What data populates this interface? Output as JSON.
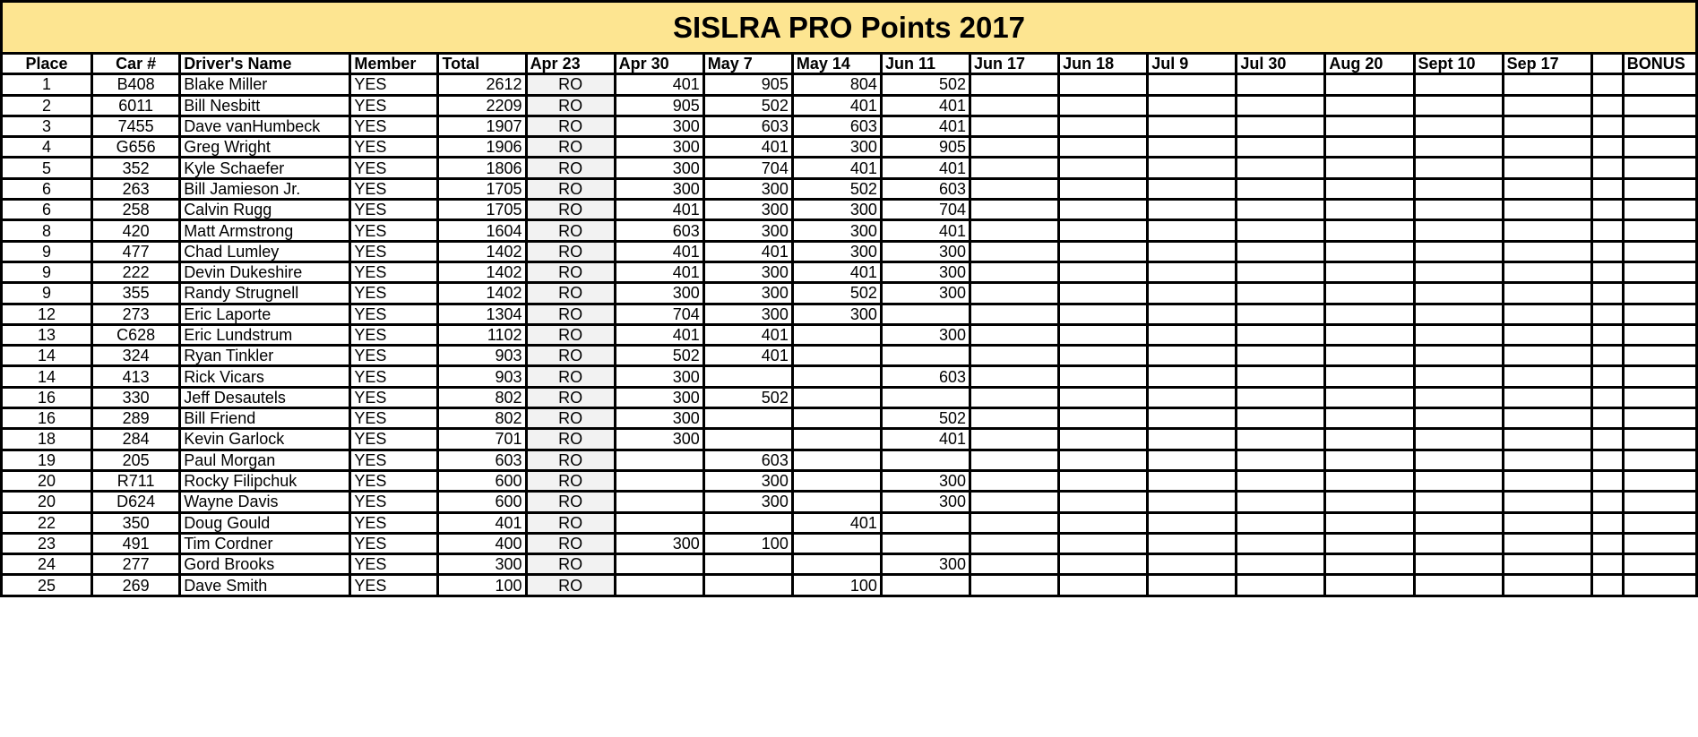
{
  "title": "SISLRA PRO Points 2017",
  "headers": [
    "Place",
    "Car #",
    "Driver's Name",
    "Member",
    "Total",
    "Apr 23",
    "Apr 30",
    "May 7",
    "May 14",
    "Jun 11",
    "Jun 17",
    "Jun 18",
    "Jul 9",
    "Jul 30",
    "Aug 20",
    "Sept 10",
    "Sep 17",
    "",
    "BONUS"
  ],
  "rows": [
    [
      "1",
      "B408",
      "Blake Miller",
      "YES",
      "2612",
      "RO",
      "401",
      "905",
      "804",
      "502",
      "",
      "",
      "",
      "",
      "",
      "",
      "",
      "",
      ""
    ],
    [
      "2",
      "6011",
      "Bill Nesbitt",
      "YES",
      "2209",
      "RO",
      "905",
      "502",
      "401",
      "401",
      "",
      "",
      "",
      "",
      "",
      "",
      "",
      "",
      ""
    ],
    [
      "3",
      "7455",
      "Dave vanHumbeck",
      "YES",
      "1907",
      "RO",
      "300",
      "603",
      "603",
      "401",
      "",
      "",
      "",
      "",
      "",
      "",
      "",
      "",
      ""
    ],
    [
      "4",
      "G656",
      "Greg Wright",
      "YES",
      "1906",
      "RO",
      "300",
      "401",
      "300",
      "905",
      "",
      "",
      "",
      "",
      "",
      "",
      "",
      "",
      ""
    ],
    [
      "5",
      "352",
      "Kyle Schaefer",
      "YES",
      "1806",
      "RO",
      "300",
      "704",
      "401",
      "401",
      "",
      "",
      "",
      "",
      "",
      "",
      "",
      "",
      ""
    ],
    [
      "6",
      "263",
      "Bill Jamieson Jr.",
      "YES",
      "1705",
      "RO",
      "300",
      "300",
      "502",
      "603",
      "",
      "",
      "",
      "",
      "",
      "",
      "",
      "",
      ""
    ],
    [
      "6",
      "258",
      "Calvin Rugg",
      "YES",
      "1705",
      "RO",
      "401",
      "300",
      "300",
      "704",
      "",
      "",
      "",
      "",
      "",
      "",
      "",
      "",
      ""
    ],
    [
      "8",
      "420",
      "Matt Armstrong",
      "YES",
      "1604",
      "RO",
      "603",
      "300",
      "300",
      "401",
      "",
      "",
      "",
      "",
      "",
      "",
      "",
      "",
      ""
    ],
    [
      "9",
      "477",
      "Chad Lumley",
      "YES",
      "1402",
      "RO",
      "401",
      "401",
      "300",
      "300",
      "",
      "",
      "",
      "",
      "",
      "",
      "",
      "",
      ""
    ],
    [
      "9",
      "222",
      "Devin Dukeshire",
      "YES",
      "1402",
      "RO",
      "401",
      "300",
      "401",
      "300",
      "",
      "",
      "",
      "",
      "",
      "",
      "",
      "",
      ""
    ],
    [
      "9",
      "355",
      "Randy Strugnell",
      "YES",
      "1402",
      "RO",
      "300",
      "300",
      "502",
      "300",
      "",
      "",
      "",
      "",
      "",
      "",
      "",
      "",
      ""
    ],
    [
      "12",
      "273",
      "Eric Laporte",
      "YES",
      "1304",
      "RO",
      "704",
      "300",
      "300",
      "",
      "",
      "",
      "",
      "",
      "",
      "",
      "",
      "",
      ""
    ],
    [
      "13",
      "C628",
      "Eric Lundstrum",
      "YES",
      "1102",
      "RO",
      "401",
      "401",
      "",
      "300",
      "",
      "",
      "",
      "",
      "",
      "",
      "",
      "",
      ""
    ],
    [
      "14",
      "324",
      "Ryan Tinkler",
      "YES",
      "903",
      "RO",
      "502",
      "401",
      "",
      "",
      "",
      "",
      "",
      "",
      "",
      "",
      "",
      "",
      ""
    ],
    [
      "14",
      "413",
      "Rick Vicars",
      "YES",
      "903",
      "RO",
      "300",
      "",
      "",
      "603",
      "",
      "",
      "",
      "",
      "",
      "",
      "",
      "",
      ""
    ],
    [
      "16",
      "330",
      "Jeff Desautels",
      "YES",
      "802",
      "RO",
      "300",
      "502",
      "",
      "",
      "",
      "",
      "",
      "",
      "",
      "",
      "",
      "",
      ""
    ],
    [
      "16",
      "289",
      "Bill Friend",
      "YES",
      "802",
      "RO",
      "300",
      "",
      "",
      "502",
      "",
      "",
      "",
      "",
      "",
      "",
      "",
      "",
      ""
    ],
    [
      "18",
      "284",
      "Kevin Garlock",
      "YES",
      "701",
      "RO",
      "300",
      "",
      "",
      "401",
      "",
      "",
      "",
      "",
      "",
      "",
      "",
      "",
      ""
    ],
    [
      "19",
      "205",
      "Paul Morgan",
      "YES",
      "603",
      "RO",
      "",
      "603",
      "",
      "",
      "",
      "",
      "",
      "",
      "",
      "",
      "",
      "",
      ""
    ],
    [
      "20",
      "R711",
      "Rocky Filipchuk",
      "YES",
      "600",
      "RO",
      "",
      "300",
      "",
      "300",
      "",
      "",
      "",
      "",
      "",
      "",
      "",
      "",
      ""
    ],
    [
      "20",
      "D624",
      "Wayne Davis",
      "YES",
      "600",
      "RO",
      "",
      "300",
      "",
      "300",
      "",
      "",
      "",
      "",
      "",
      "",
      "",
      "",
      ""
    ],
    [
      "22",
      "350",
      "Doug Gould",
      "YES",
      "401",
      "RO",
      "",
      "",
      "401",
      "",
      "",
      "",
      "",
      "",
      "",
      "",
      "",
      "",
      ""
    ],
    [
      "23",
      "491",
      "Tim Cordner",
      "YES",
      "400",
      "RO",
      "300",
      "100",
      "",
      "",
      "",
      "",
      "",
      "",
      "",
      "",
      "",
      "",
      ""
    ],
    [
      "24",
      "277",
      "Gord Brooks",
      "YES",
      "300",
      "RO",
      "",
      "",
      "",
      "300",
      "",
      "",
      "",
      "",
      "",
      "",
      "",
      "",
      ""
    ],
    [
      "25",
      "269",
      "Dave Smith",
      "YES",
      "100",
      "RO",
      "",
      "",
      "100",
      "",
      "",
      "",
      "",
      "",
      "",
      "",
      "",
      "",
      ""
    ]
  ]
}
